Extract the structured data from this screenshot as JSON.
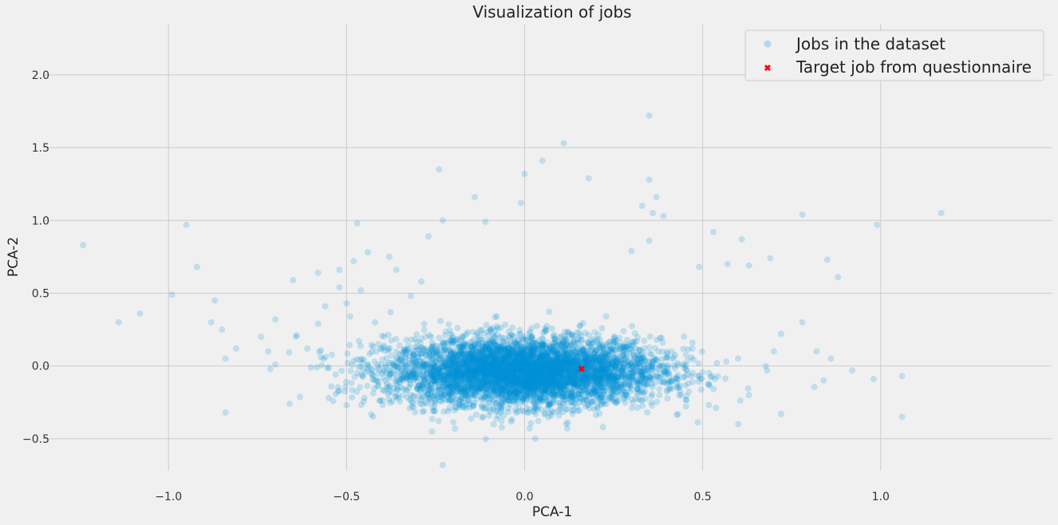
{
  "chart_data": {
    "type": "scatter",
    "title": "Visualization of jobs",
    "xlabel": "PCA-1",
    "ylabel": "PCA-2",
    "xlim": [
      -1.35,
      1.48
    ],
    "ylim": [
      -0.72,
      2.35
    ],
    "xticks": [
      -1.0,
      -0.5,
      0.0,
      0.5,
      1.0
    ],
    "xtick_labels": [
      "−1.0",
      "−0.5",
      "0.0",
      "0.5",
      "1.0"
    ],
    "yticks": [
      -0.5,
      0.0,
      0.5,
      1.0,
      1.5,
      2.0
    ],
    "ytick_labels": [
      "−0.5",
      "0.0",
      "0.5",
      "1.0",
      "1.5",
      "2.0"
    ],
    "grid": true,
    "legend_position": "top-right",
    "series": [
      {
        "name": "Jobs in the dataset",
        "color": "#008fd5",
        "alpha": 0.2,
        "points": [
          [
            -1.24,
            0.83
          ],
          [
            -1.14,
            0.3
          ],
          [
            -1.08,
            0.36
          ],
          [
            -0.99,
            0.49
          ],
          [
            -0.95,
            0.97
          ],
          [
            -0.92,
            0.68
          ],
          [
            -0.88,
            0.3
          ],
          [
            -0.87,
            0.45
          ],
          [
            -0.85,
            0.25
          ],
          [
            -0.84,
            0.05
          ],
          [
            -0.84,
            -0.32
          ],
          [
            -0.81,
            0.12
          ],
          [
            -0.74,
            0.2
          ],
          [
            -0.72,
            0.1
          ],
          [
            -0.7,
            0.32
          ],
          [
            -0.7,
            0.01
          ],
          [
            -0.66,
            -0.26
          ],
          [
            -0.65,
            0.59
          ],
          [
            -0.64,
            0.21
          ],
          [
            -0.61,
            0.12
          ],
          [
            -0.6,
            -0.01
          ],
          [
            -0.58,
            0.64
          ],
          [
            -0.58,
            0.29
          ],
          [
            -0.56,
            0.41
          ],
          [
            -0.55,
            -0.22
          ],
          [
            -0.52,
            0.66
          ],
          [
            -0.52,
            0.54
          ],
          [
            -0.5,
            0.43
          ],
          [
            -0.49,
            0.34
          ],
          [
            -0.48,
            0.72
          ],
          [
            -0.47,
            0.98
          ],
          [
            -0.46,
            0.52
          ],
          [
            -0.44,
            0.78
          ],
          [
            -0.42,
            0.3
          ],
          [
            -0.38,
            0.75
          ],
          [
            -0.36,
            0.66
          ],
          [
            -0.32,
            0.48
          ],
          [
            -0.29,
            0.58
          ],
          [
            -0.27,
            0.89
          ],
          [
            -0.24,
            1.35
          ],
          [
            -0.23,
            1.0
          ],
          [
            -0.23,
            -0.68
          ],
          [
            -0.26,
            -0.45
          ],
          [
            -0.14,
            1.16
          ],
          [
            -0.11,
            0.99
          ],
          [
            -0.01,
            1.12
          ],
          [
            0.0,
            1.32
          ],
          [
            0.05,
            1.41
          ],
          [
            0.11,
            1.53
          ],
          [
            0.18,
            1.29
          ],
          [
            0.35,
            1.72
          ],
          [
            0.35,
            1.28
          ],
          [
            0.37,
            1.16
          ],
          [
            0.33,
            1.1
          ],
          [
            0.36,
            1.05
          ],
          [
            0.39,
            1.03
          ],
          [
            0.35,
            0.86
          ],
          [
            0.3,
            0.79
          ],
          [
            0.53,
            0.92
          ],
          [
            0.61,
            0.87
          ],
          [
            0.63,
            0.69
          ],
          [
            0.69,
            0.74
          ],
          [
            0.78,
            1.04
          ],
          [
            0.99,
            0.97
          ],
          [
            1.17,
            1.05
          ],
          [
            0.85,
            0.73
          ],
          [
            0.88,
            0.61
          ],
          [
            0.78,
            0.3
          ],
          [
            0.82,
            0.1
          ],
          [
            0.86,
            0.05
          ],
          [
            0.92,
            -0.03
          ],
          [
            0.98,
            -0.09
          ],
          [
            1.06,
            -0.07
          ],
          [
            1.06,
            -0.35
          ],
          [
            0.72,
            -0.33
          ],
          [
            0.63,
            -0.2
          ],
          [
            0.6,
            -0.4
          ],
          [
            0.84,
            -0.1
          ],
          [
            0.7,
            0.1
          ],
          [
            0.72,
            0.22
          ],
          [
            -0.5,
            -0.27
          ],
          [
            -0.45,
            -0.22
          ],
          [
            0.54,
            0.02
          ],
          [
            0.57,
            0.7
          ],
          [
            0.49,
            0.68
          ],
          [
            -0.3,
            -0.08
          ],
          [
            0.03,
            -0.5
          ],
          [
            0.12,
            -0.43
          ],
          [
            0.22,
            -0.42
          ],
          [
            1.36,
            2.2
          ]
        ]
      },
      {
        "name": "Target job from questionnaire",
        "color": "#ff0000",
        "marker": "X",
        "points": [
          [
            0.16,
            -0.02
          ]
        ]
      }
    ]
  }
}
